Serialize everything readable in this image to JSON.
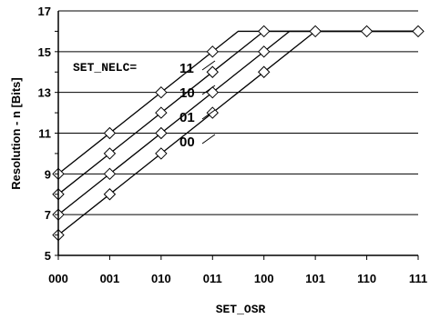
{
  "chart_data": {
    "type": "line",
    "xlabel": "SET_OSR",
    "ylabel": "Resolution - n [Bits]",
    "categories": [
      "000",
      "001",
      "010",
      "011",
      "100",
      "101",
      "110",
      "111"
    ],
    "ylim": [
      5,
      17
    ],
    "yticks": [
      5,
      7,
      9,
      11,
      13,
      15,
      17
    ],
    "grid": "horizontal",
    "legend_title": "SET_NELC=",
    "series": [
      {
        "name": "11",
        "values": [
          9,
          11,
          13,
          15,
          16,
          16,
          16,
          16
        ]
      },
      {
        "name": "10",
        "values": [
          8,
          10,
          12,
          14,
          15,
          16,
          16,
          16
        ]
      },
      {
        "name": "01",
        "values": [
          7,
          9,
          11,
          13,
          14,
          16,
          16,
          16
        ]
      },
      {
        "name": "00",
        "values": [
          6,
          8,
          10,
          12,
          13,
          16,
          16,
          16
        ]
      }
    ],
    "marker_points": [
      {
        "x": "000",
        "y": 9
      },
      {
        "x": "000",
        "y": 8
      },
      {
        "x": "000",
        "y": 7
      },
      {
        "x": "000",
        "y": 6
      },
      {
        "x": "001",
        "y": 11
      },
      {
        "x": "001",
        "y": 10
      },
      {
        "x": "001",
        "y": 9
      },
      {
        "x": "001",
        "y": 8
      },
      {
        "x": "010",
        "y": 13
      },
      {
        "x": "010",
        "y": 12
      },
      {
        "x": "010",
        "y": 11
      },
      {
        "x": "010",
        "y": 10
      },
      {
        "x": "011",
        "y": 15
      },
      {
        "x": "011",
        "y": 14
      },
      {
        "x": "011",
        "y": 13
      },
      {
        "x": "011",
        "y": 12
      },
      {
        "x": "100",
        "y": 16
      },
      {
        "x": "100",
        "y": 15
      },
      {
        "x": "100",
        "y": 14
      },
      {
        "x": "101",
        "y": 16
      },
      {
        "x": "110",
        "y": 16
      },
      {
        "x": "111",
        "y": 16
      }
    ]
  }
}
